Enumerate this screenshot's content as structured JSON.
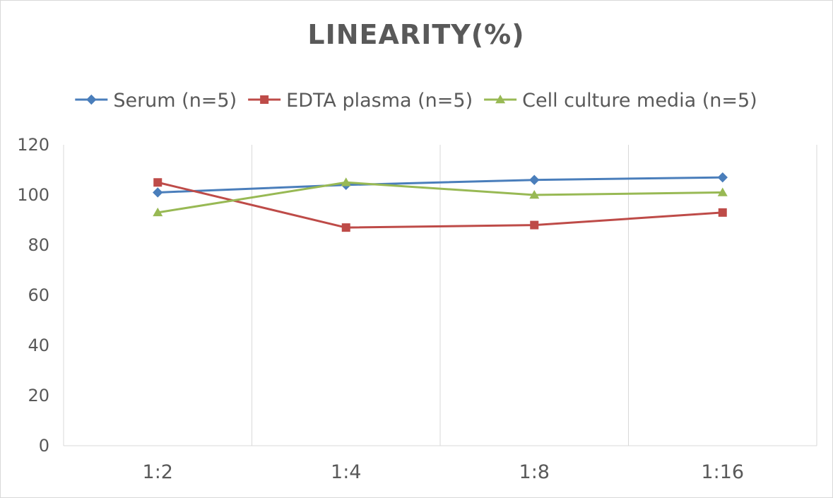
{
  "chart_data": {
    "type": "line",
    "title": "LINEARITY(%)",
    "xlabel": "",
    "ylabel": "",
    "categories": [
      "1:2",
      "1:4",
      "1:8",
      "1:16"
    ],
    "ylim": [
      0,
      120
    ],
    "yticks": [
      0,
      20,
      40,
      60,
      80,
      100,
      120
    ],
    "grid": "vertical",
    "legend_position": "top",
    "series": [
      {
        "name": "Serum (n=5)",
        "values": [
          101,
          104,
          106,
          107
        ],
        "color": "#4a7ebb",
        "marker": "diamond"
      },
      {
        "name": "EDTA plasma (n=5)",
        "values": [
          105,
          87,
          88,
          93
        ],
        "color": "#be4b48",
        "marker": "square"
      },
      {
        "name": "Cell culture media (n=5)",
        "values": [
          93,
          105,
          100,
          101
        ],
        "color": "#98b954",
        "marker": "triangle"
      }
    ]
  }
}
